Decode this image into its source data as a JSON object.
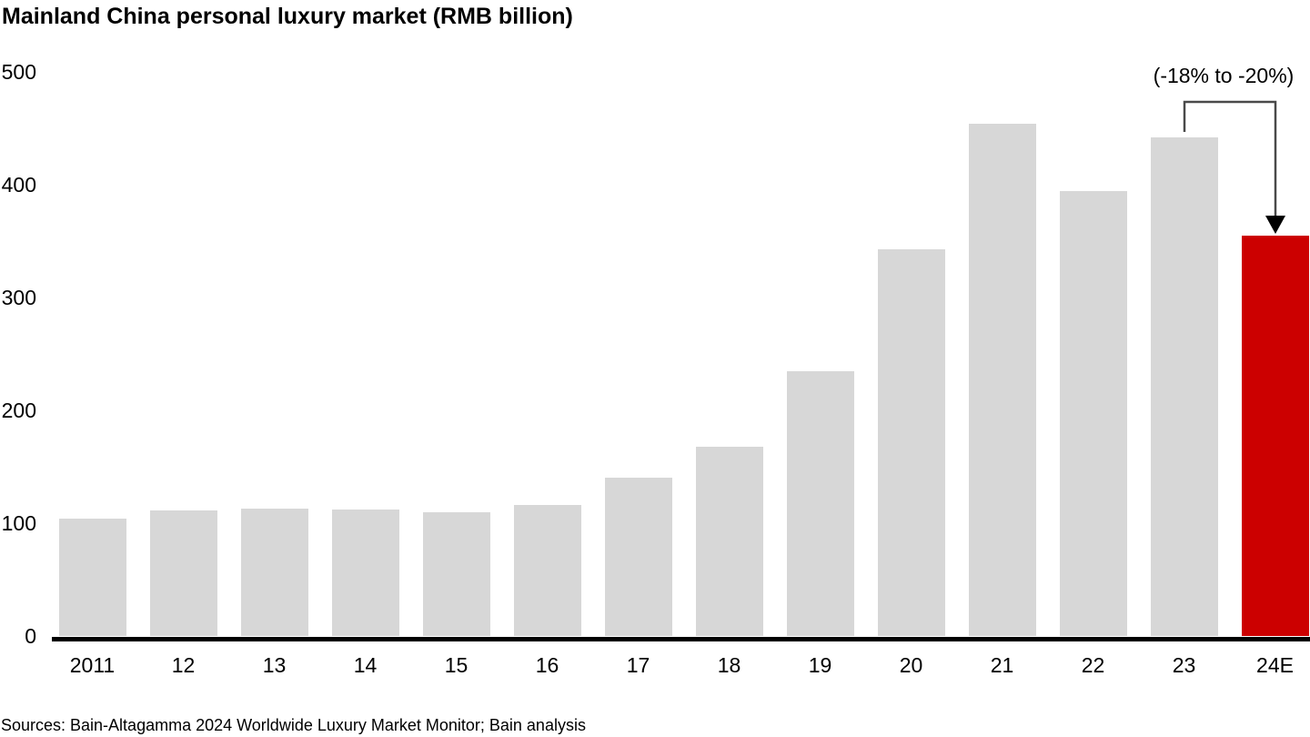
{
  "title": "Mainland China personal luxury market (RMB billion)",
  "source_note": "Sources: Bain-Altagamma 2024 Worldwide Luxury Market Monitor; Bain analysis",
  "colors": {
    "bar_default": "#d7d7d7",
    "bar_highlight": "#cc0000",
    "axis": "#000000",
    "annotation_line": "#4a4a4a",
    "annotation_arrowhead": "#000000"
  },
  "chart_data": {
    "type": "bar",
    "title": "Mainland China personal luxury market (RMB billion)",
    "categories": [
      "2011",
      "12",
      "13",
      "14",
      "15",
      "16",
      "17",
      "18",
      "19",
      "20",
      "21",
      "22",
      "23",
      "24E"
    ],
    "values": [
      104,
      111,
      113,
      112,
      110,
      116,
      140,
      168,
      235,
      343,
      454,
      394,
      442,
      355
    ],
    "highlight_category": "24E",
    "xlabel": "",
    "ylabel": "",
    "ylim": [
      0,
      500
    ],
    "yticks": [
      0,
      100,
      200,
      300,
      400,
      500
    ],
    "grid": false,
    "legend_position": "none",
    "annotation": {
      "text": "(-18% to -20%)",
      "from_category": "23",
      "to_category": "24E"
    }
  }
}
